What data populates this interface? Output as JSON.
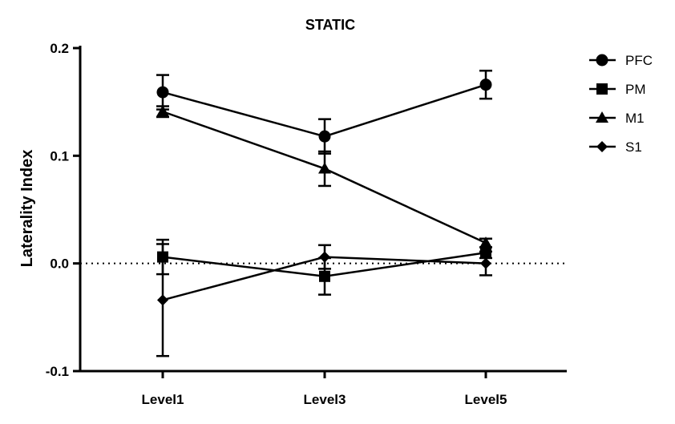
{
  "chart_data": {
    "type": "line",
    "title": "STATIC",
    "xlabel": "",
    "ylabel": "Laterality Index",
    "categories": [
      "Level1",
      "Level3",
      "Level5"
    ],
    "ylim": [
      -0.1,
      0.2
    ],
    "yticks": [
      "-0.1",
      "0.0",
      "0.1",
      "0.2"
    ],
    "reference_line": {
      "y": 0.0,
      "style": "dotted"
    },
    "legend_position": "top-right",
    "grid": false,
    "color": "#000000",
    "series": [
      {
        "name": "PFC",
        "marker": "circle",
        "values": [
          0.159,
          0.118,
          0.166
        ],
        "errors": [
          0.016,
          0.016,
          0.013
        ]
      },
      {
        "name": "PM",
        "marker": "square",
        "values": [
          0.006,
          -0.012,
          0.01
        ],
        "errors": [
          0.016,
          0.017,
          0.005
        ]
      },
      {
        "name": "M1",
        "marker": "triangle",
        "values": [
          0.141,
          0.088,
          0.019
        ],
        "errors": [
          0.005,
          0.016,
          0.004
        ]
      },
      {
        "name": "S1",
        "marker": "diamond",
        "values": [
          -0.034,
          0.006,
          0.0
        ],
        "errors": [
          0.052,
          0.011,
          0.011
        ]
      }
    ]
  }
}
